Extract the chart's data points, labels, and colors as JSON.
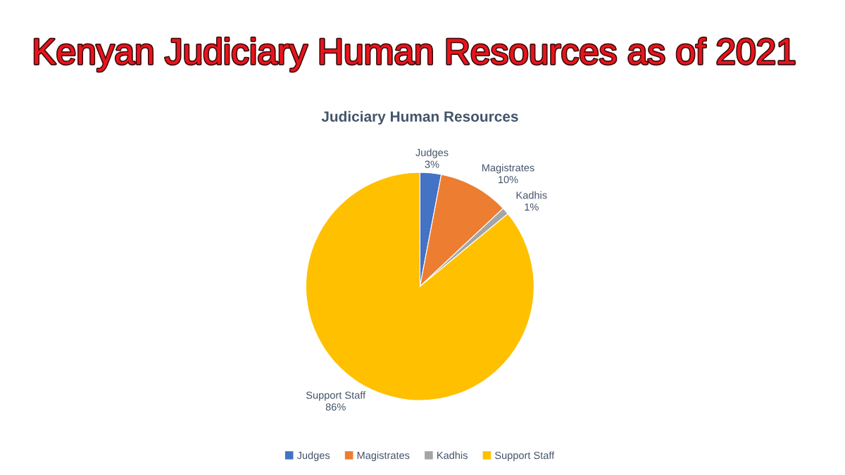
{
  "chart_data": {
    "type": "pie",
    "title": "Kenyan Judiciary Human Resources as of 2021",
    "subtitle": "Judiciary Human Resources",
    "categories": [
      "Judges",
      "Magistrates",
      "Kadhis",
      "Support Staff"
    ],
    "values": [
      3,
      10,
      1,
      86
    ],
    "colors": [
      "#4472c4",
      "#ed7d31",
      "#a5a5a5",
      "#ffc000"
    ],
    "value_labels": [
      "3%",
      "10%",
      "1%",
      "86%"
    ],
    "legend": "bottom"
  }
}
